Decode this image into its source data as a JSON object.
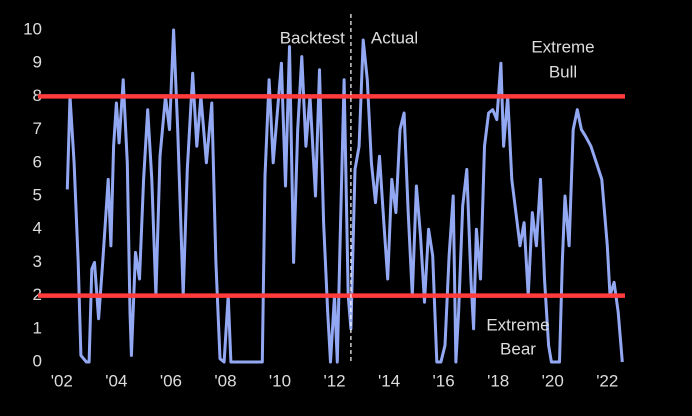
{
  "chart_data": {
    "type": "line",
    "x": [
      2002.2,
      2002.3,
      2002.45,
      2002.6,
      2002.7,
      2002.9,
      2003.0,
      2003.1,
      2003.2,
      2003.35,
      2003.5,
      2003.7,
      2003.8,
      2003.9,
      2004.0,
      2004.1,
      2004.25,
      2004.4,
      2004.5,
      2004.55,
      2004.7,
      2004.85,
      2005.0,
      2005.15,
      2005.3,
      2005.45,
      2005.6,
      2005.8,
      2005.95,
      2006.1,
      2006.25,
      2006.45,
      2006.6,
      2006.8,
      2006.95,
      2007.1,
      2007.3,
      2007.5,
      2007.65,
      2007.8,
      2007.95,
      2008.1,
      2008.2,
      2008.4,
      2008.6,
      2008.8,
      2009.0,
      2009.2,
      2009.35,
      2009.45,
      2009.6,
      2009.75,
      2009.9,
      2010.05,
      2010.2,
      2010.35,
      2010.5,
      2010.65,
      2010.8,
      2010.95,
      2011.1,
      2011.3,
      2011.45,
      2011.6,
      2011.75,
      2011.85,
      2012.0,
      2012.1,
      2012.2,
      2012.35,
      2012.5,
      2012.6,
      2012.75,
      2012.9,
      2013.05,
      2013.2,
      2013.35,
      2013.5,
      2013.65,
      2013.8,
      2013.95,
      2014.1,
      2014.25,
      2014.4,
      2014.55,
      2014.7,
      2014.85,
      2015.0,
      2015.15,
      2015.3,
      2015.45,
      2015.6,
      2015.75,
      2015.9,
      2016.05,
      2016.2,
      2016.35,
      2016.45,
      2016.55,
      2016.7,
      2016.85,
      2017.0,
      2017.1,
      2017.2,
      2017.35,
      2017.5,
      2017.65,
      2017.8,
      2017.95,
      2018.1,
      2018.2,
      2018.35,
      2018.5,
      2018.65,
      2018.8,
      2018.95,
      2019.1,
      2019.25,
      2019.4,
      2019.55,
      2019.7,
      2019.85,
      2019.95,
      2020.1,
      2020.25,
      2020.35,
      2020.45,
      2020.6,
      2020.75,
      2020.9,
      2021.05,
      2021.2,
      2021.4,
      2021.6,
      2021.8,
      2022.0,
      2022.1,
      2022.25,
      2022.4,
      2022.55
    ],
    "values": [
      5.2,
      8,
      6,
      3,
      0.2,
      0,
      0,
      2.8,
      3,
      1.3,
      3,
      5.5,
      3.5,
      6.5,
      7.8,
      6.6,
      8.5,
      6,
      1.5,
      0.2,
      3.3,
      2.5,
      5.5,
      7.6,
      5.5,
      2,
      6.2,
      8,
      7,
      10,
      7,
      2,
      5.8,
      8.7,
      6.5,
      8,
      6,
      7.8,
      3,
      0.1,
      0,
      2,
      0,
      0,
      0,
      0,
      0,
      0,
      0,
      5.6,
      8.5,
      6,
      7.5,
      9,
      5.3,
      9.5,
      3,
      7,
      9.2,
      6.5,
      8,
      5,
      8.8,
      4.2,
      1.5,
      0,
      2,
      0,
      3.5,
      8.5,
      2,
      1,
      5.8,
      6.5,
      9.7,
      8.5,
      6,
      4.8,
      6.2,
      4.3,
      2.5,
      5.5,
      4.5,
      7,
      7.5,
      4.5,
      2,
      5.3,
      3.8,
      1.8,
      4,
      3.2,
      0,
      0,
      0.5,
      3.2,
      5,
      0,
      1.5,
      4.7,
      5.8,
      2.5,
      1,
      4,
      2.5,
      6.5,
      7.5,
      7.6,
      7.3,
      9,
      6.5,
      8,
      5.5,
      4.5,
      3.5,
      4.2,
      2,
      4.5,
      3.5,
      5.5,
      2.5,
      0.5,
      0,
      0,
      0,
      3,
      5,
      3.5,
      7,
      7.6,
      7,
      6.8,
      6.5,
      6,
      5.5,
      3.5,
      2,
      2.4,
      1.5,
      0
    ],
    "color": "#93a8f2",
    "xlim": [
      2001.75,
      2022.65
    ],
    "ylim": [
      0,
      10
    ],
    "yticks": [
      0,
      1,
      2,
      3,
      4,
      5,
      6,
      7,
      8,
      9,
      10
    ],
    "xticks": [
      {
        "value": 2002,
        "label": "'02"
      },
      {
        "value": 2004,
        "label": "'04"
      },
      {
        "value": 2006,
        "label": "'06"
      },
      {
        "value": 2008,
        "label": "'08"
      },
      {
        "value": 2010,
        "label": "'10"
      },
      {
        "value": 2012,
        "label": "'12"
      },
      {
        "value": 2014,
        "label": "'14"
      },
      {
        "value": 2016,
        "label": "'16"
      },
      {
        "value": 2018,
        "label": "'18"
      },
      {
        "value": 2020,
        "label": "'20"
      },
      {
        "value": 2022,
        "label": "'22"
      }
    ],
    "hlines": [
      8,
      2
    ],
    "hline_color": "#ff3b3b",
    "vline": 2012.6,
    "annotations": [
      "Backtest",
      "Actual",
      "Extreme",
      "Bull",
      "Extreme",
      "Bear"
    ]
  }
}
